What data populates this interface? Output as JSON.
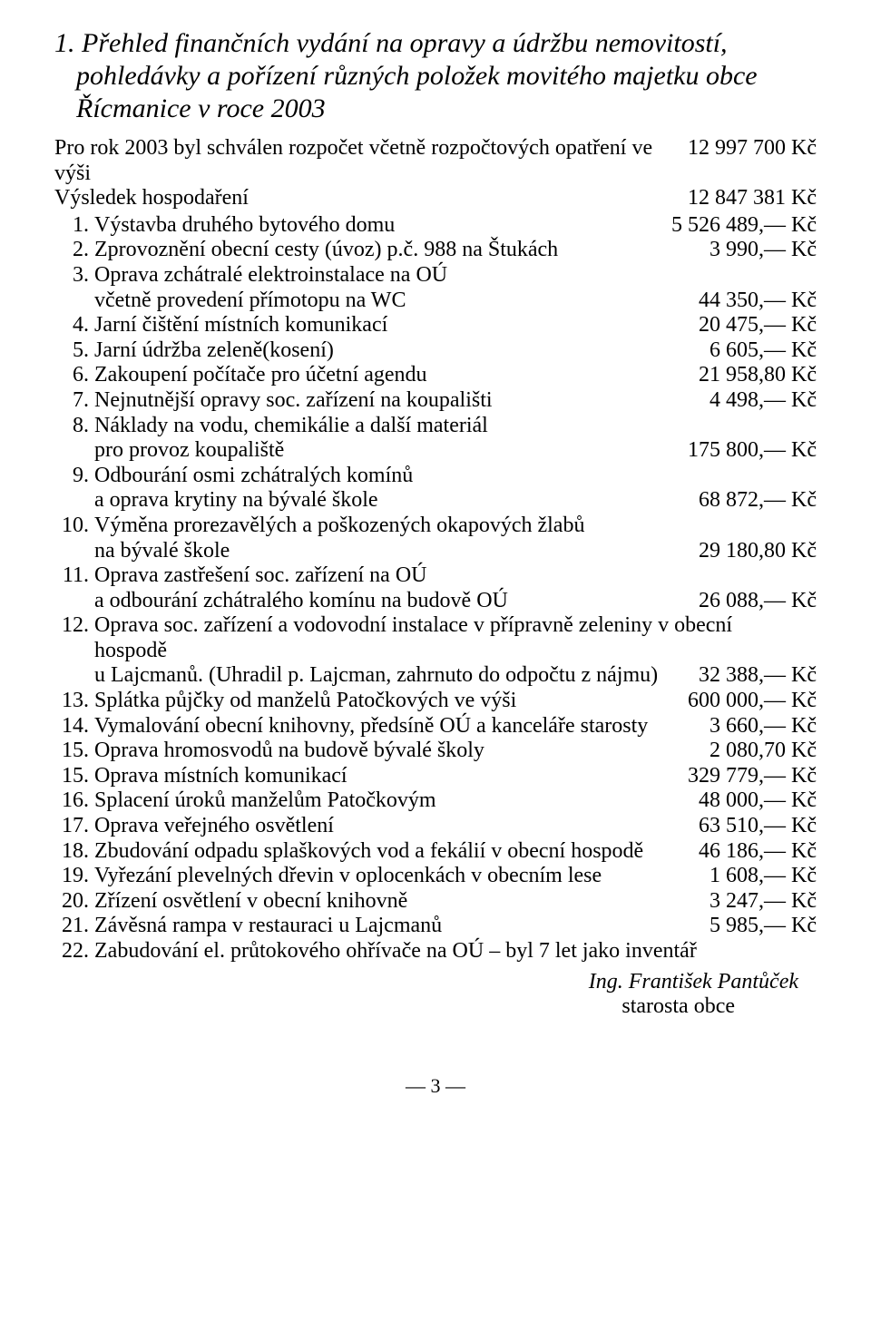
{
  "title": "1. Přehled finančních vydání na opravy a údržbu nemovitostí, pohledávky a pořízení různých položek movitého majetku obce Řícmanice v roce 2003",
  "intro_line": "Pro rok 2003 byl schválen rozpočet včetně rozpočtových opatření ve výši",
  "budget_amount": "12 997 700 Kč",
  "result_label": "Výsledek hospodaření",
  "result_amount": "12 847 381 Kč",
  "items": [
    {
      "n": "1.",
      "lines": [
        {
          "t": "Výstavba druhého bytového domu",
          "a": "5 526 489,— Kč"
        }
      ]
    },
    {
      "n": "2.",
      "lines": [
        {
          "t": "Zprovoznění obecní cesty (úvoz) p.č. 988 na Štukách",
          "a": "3 990,— Kč"
        }
      ]
    },
    {
      "n": "3.",
      "lines": [
        {
          "t": "Oprava zchátralé elektroinstalace na OÚ"
        },
        {
          "t": "včetně provedení přímotopu na WC",
          "a": "44 350,— Kč"
        }
      ]
    },
    {
      "n": "4.",
      "lines": [
        {
          "t": "Jarní čištění místních komunikací",
          "a": "20 475,— Kč"
        }
      ]
    },
    {
      "n": "5.",
      "lines": [
        {
          "t": "Jarní údržba zeleně(kosení)",
          "a": "6 605,— Kč"
        }
      ]
    },
    {
      "n": "6.",
      "lines": [
        {
          "t": "Zakoupení počítače pro účetní agendu",
          "a": "21 958,80 Kč"
        }
      ]
    },
    {
      "n": "7.",
      "lines": [
        {
          "t": "Nejnutnější opravy soc. zařízení na koupališti",
          "a": "4 498,— Kč"
        }
      ]
    },
    {
      "n": "8.",
      "lines": [
        {
          "t": "Náklady na vodu, chemikálie a další materiál"
        },
        {
          "t": "pro provoz koupaliště",
          "a": "175 800,— Kč"
        }
      ]
    },
    {
      "n": "9.",
      "lines": [
        {
          "t": "Odbourání osmi zchátralých komínů"
        },
        {
          "t": "a oprava krytiny na bývalé škole",
          "a": "68 872,— Kč"
        }
      ]
    },
    {
      "n": "10.",
      "lines": [
        {
          "t": "Výměna prorezavělých a poškozených okapových žlabů"
        },
        {
          "t": "na bývalé škole",
          "a": "29 180,80 Kč"
        }
      ]
    },
    {
      "n": "11.",
      "lines": [
        {
          "t": "Oprava zastřešení soc. zařízení na OÚ"
        },
        {
          "t": "a odbourání zchátralého komínu na budově OÚ",
          "a": "26 088,— Kč"
        }
      ]
    },
    {
      "n": "12.",
      "lines": [
        {
          "t": "Oprava soc. zařízení a vodovodní instalace v přípravně zeleniny v obecní hospodě"
        },
        {
          "t": "u Lajcmanů. (Uhradil p. Lajcman, zahrnuto do odpočtu z nájmu)",
          "a": "32 388,— Kč"
        }
      ]
    },
    {
      "n": "13.",
      "lines": [
        {
          "t": "Splátka půjčky od manželů Patočkových ve výši",
          "a": "600 000,— Kč"
        }
      ]
    },
    {
      "n": "14.",
      "lines": [
        {
          "t": "Vymalování obecní knihovny, předsíně OÚ a kanceláře starosty",
          "a": "3 660,— Kč"
        }
      ]
    },
    {
      "n": "15.",
      "lines": [
        {
          "t": "Oprava hromosvodů na budově bývalé školy",
          "a": "2 080,70 Kč"
        }
      ]
    },
    {
      "n": "15.",
      "lines": [
        {
          "t": "Oprava místních komunikací",
          "a": "329 779,— Kč"
        }
      ]
    },
    {
      "n": "16.",
      "lines": [
        {
          "t": "Splacení úroků manželům Patočkovým",
          "a": "48 000,— Kč"
        }
      ]
    },
    {
      "n": "17.",
      "lines": [
        {
          "t": "Oprava veřejného osvětlení",
          "a": "63 510,— Kč"
        }
      ]
    },
    {
      "n": "18.",
      "lines": [
        {
          "t": "Zbudování odpadu splaškových vod a fekálií v obecní hospodě",
          "a": "46 186,— Kč"
        }
      ]
    },
    {
      "n": "19.",
      "lines": [
        {
          "t": "Vyřezání plevelných dřevin v oplocenkách v obecním lese",
          "a": "1 608,— Kč"
        }
      ]
    },
    {
      "n": "20.",
      "lines": [
        {
          "t": "Zřízení osvětlení v obecní knihovně",
          "a": "3 247,— Kč"
        }
      ]
    },
    {
      "n": "21.",
      "lines": [
        {
          "t": "Závěsná rampa v restauraci u Lajcmanů",
          "a": "5 985,— Kč"
        }
      ]
    },
    {
      "n": "22.",
      "lines": [
        {
          "t": "Zabudování el. průtokového ohřívače na OÚ – byl 7 let jako inventář"
        }
      ]
    }
  ],
  "signature_name": "Ing. František Pantůček",
  "signature_role": "starosta obce",
  "page_number": "— 3 —"
}
